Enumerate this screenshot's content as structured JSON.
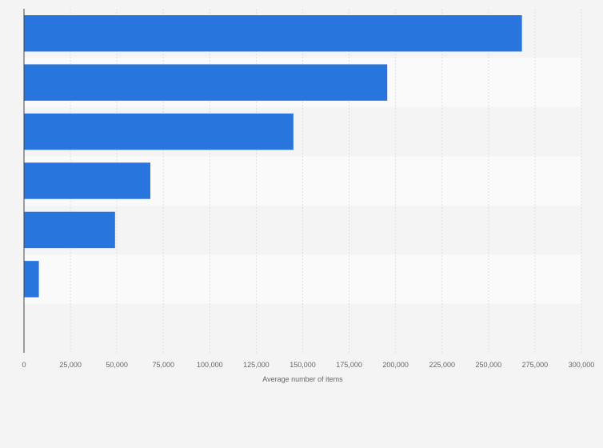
{
  "chart_data": {
    "type": "bar",
    "orientation": "horizontal",
    "categories": [
      "",
      "",
      "",
      "",
      "",
      ""
    ],
    "values": [
      268000,
      195500,
      145000,
      68000,
      49000,
      8000
    ],
    "xlabel": "Average number of items",
    "ylabel": "",
    "xlim": [
      0,
      300000
    ],
    "x_ticks": [
      0,
      25000,
      50000,
      75000,
      100000,
      125000,
      150000,
      175000,
      200000,
      225000,
      250000,
      275000,
      300000
    ],
    "x_tick_labels": [
      "0",
      "25,000",
      "50,000",
      "75,000",
      "100,000",
      "125,000",
      "150,000",
      "175,000",
      "200,000",
      "225,000",
      "250,000",
      "275,000",
      "300,000"
    ],
    "grid": true,
    "bar_color": "#2876dd",
    "band_colors": [
      "#f4f4f5",
      "#fafafa"
    ],
    "gridline_color": "#dedede",
    "axis_color": "#444444",
    "background": "#f4f4f5"
  }
}
